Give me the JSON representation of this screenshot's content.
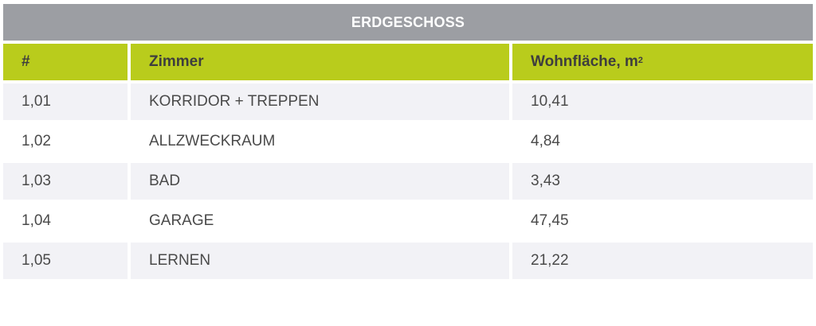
{
  "title": "ERDGESCHOSS",
  "header": {
    "col_num": "#",
    "col_room": "Zimmer",
    "col_area": "Wohnfläche, m",
    "col_area_sup": "2"
  },
  "rows": [
    {
      "num": "1,01",
      "room": "KORRIDOR + TREPPEN",
      "area": "10,41"
    },
    {
      "num": "1,02",
      "room": "ALLZWECKRAUM",
      "area": "4,84"
    },
    {
      "num": "1,03",
      "room": "BAD",
      "area": "3,43"
    },
    {
      "num": "1,04",
      "room": "GARAGE",
      "area": "47,45"
    },
    {
      "num": "1,05",
      "room": "LERNEN",
      "area": "21,22"
    }
  ],
  "colors": {
    "title_bg": "#9c9ea3",
    "header_bg": "#b9cc1c",
    "row_alt_bg": "#f2f2f6"
  }
}
